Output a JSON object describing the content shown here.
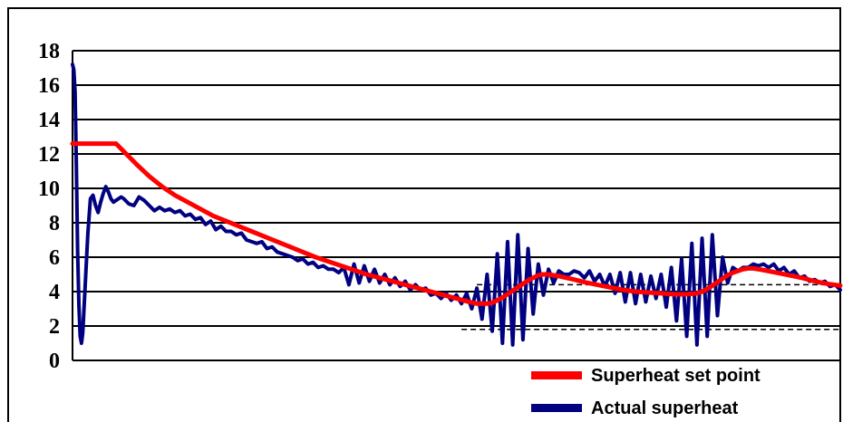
{
  "chart_data": {
    "type": "line",
    "ylim": [
      0,
      18
    ],
    "y_ticks": [
      "0",
      "2",
      "4",
      "6",
      "8",
      "10",
      "12",
      "14",
      "16",
      "18"
    ],
    "grid": "horizontal",
    "legend_position": "bottom-right",
    "x_range": [
      0,
      300
    ],
    "series": [
      {
        "name": "Superheat set point",
        "color": "#ff0000",
        "x": [
          0,
          10,
          12,
          14,
          17,
          21,
          25,
          30,
          35,
          40,
          45,
          50,
          55,
          60,
          65,
          70,
          75,
          80,
          85,
          90,
          95,
          100,
          105,
          110,
          115,
          120,
          125,
          130,
          135,
          140,
          145,
          150,
          155,
          158,
          160,
          162,
          164,
          166,
          168,
          170,
          172,
          174,
          176,
          178,
          180,
          182,
          184,
          186,
          188,
          190,
          193,
          196,
          200,
          205,
          210,
          215,
          220,
          225,
          230,
          235,
          240,
          244,
          246,
          248,
          250,
          252,
          254,
          256,
          258,
          260,
          262,
          264,
          266,
          268,
          270,
          275,
          280,
          285,
          290,
          295,
          300
        ],
        "y": [
          12.6,
          12.6,
          12.6,
          12.6,
          12.6,
          12.0,
          11.4,
          10.7,
          10.1,
          9.6,
          9.2,
          8.8,
          8.4,
          8.1,
          7.8,
          7.5,
          7.2,
          6.9,
          6.6,
          6.3,
          6.0,
          5.75,
          5.5,
          5.25,
          5.0,
          4.8,
          4.6,
          4.4,
          4.2,
          4.0,
          3.8,
          3.6,
          3.4,
          3.3,
          3.3,
          3.3,
          3.35,
          3.5,
          3.65,
          3.85,
          4.05,
          4.25,
          4.45,
          4.65,
          4.8,
          4.95,
          5.0,
          5.0,
          4.95,
          4.9,
          4.8,
          4.7,
          4.55,
          4.4,
          4.25,
          4.1,
          4.0,
          3.95,
          3.9,
          3.85,
          3.85,
          3.9,
          4.0,
          4.15,
          4.35,
          4.55,
          4.75,
          4.95,
          5.1,
          5.2,
          5.3,
          5.35,
          5.35,
          5.3,
          5.25,
          5.1,
          4.95,
          4.8,
          4.6,
          4.45,
          4.35
        ]
      },
      {
        "name": "Actual superheat",
        "color": "#000080",
        "x": [
          0,
          0.5,
          1,
          1.5,
          2,
          2.5,
          3,
          3.5,
          4,
          5,
          6,
          7,
          8,
          9,
          10,
          11,
          12,
          13,
          14,
          15,
          16,
          17,
          18,
          19,
          20,
          22,
          24,
          26,
          28,
          30,
          32,
          34,
          36,
          38,
          40,
          42,
          44,
          46,
          48,
          50,
          52,
          54,
          56,
          58,
          60,
          62,
          64,
          66,
          68,
          70,
          72,
          74,
          76,
          78,
          80,
          82,
          84,
          86,
          88,
          90,
          92,
          94,
          96,
          98,
          100,
          102,
          104,
          106,
          108,
          110,
          112,
          114,
          116,
          118,
          120,
          122,
          124,
          126,
          128,
          130,
          132,
          134,
          136,
          138,
          140,
          142,
          144,
          146,
          148,
          150,
          152,
          154,
          156,
          158,
          160,
          162,
          164,
          166,
          168,
          170,
          172,
          174,
          176,
          178,
          180,
          182,
          184,
          186,
          188,
          190,
          192,
          194,
          196,
          198,
          200,
          202,
          204,
          206,
          208,
          210,
          212,
          214,
          216,
          218,
          220,
          222,
          224,
          226,
          228,
          230,
          232,
          234,
          236,
          238,
          240,
          242,
          244,
          246,
          248,
          250,
          252,
          254,
          256,
          258,
          260,
          262,
          264,
          266,
          268,
          270,
          272,
          274,
          276,
          278,
          280,
          282,
          284,
          286,
          288,
          290,
          292,
          294,
          296,
          298,
          300
        ],
        "y": [
          17.2,
          16.9,
          15.6,
          11.4,
          6.3,
          3.2,
          1.4,
          1.0,
          1.6,
          4.5,
          7.4,
          9.4,
          9.6,
          9.0,
          8.6,
          9.2,
          9.7,
          10.1,
          9.8,
          9.4,
          9.2,
          9.3,
          9.4,
          9.5,
          9.4,
          9.1,
          9.0,
          9.5,
          9.3,
          9.0,
          8.7,
          8.9,
          8.7,
          8.8,
          8.6,
          8.7,
          8.4,
          8.5,
          8.2,
          8.3,
          7.9,
          8.1,
          7.6,
          7.8,
          7.5,
          7.5,
          7.3,
          7.4,
          7.0,
          6.9,
          6.8,
          6.9,
          6.5,
          6.6,
          6.3,
          6.2,
          6.1,
          6.0,
          5.8,
          5.9,
          5.6,
          5.7,
          5.4,
          5.5,
          5.3,
          5.3,
          5.1,
          5.4,
          4.4,
          5.6,
          4.5,
          5.5,
          4.6,
          5.3,
          4.5,
          5.0,
          4.4,
          4.8,
          4.3,
          4.6,
          4.1,
          4.4,
          4.1,
          4.2,
          3.8,
          3.9,
          3.6,
          3.9,
          3.5,
          3.8,
          3.3,
          3.9,
          3.0,
          4.2,
          2.4,
          5.0,
          1.7,
          6.2,
          1.0,
          6.9,
          0.9,
          7.3,
          1.2,
          6.5,
          2.7,
          5.6,
          3.8,
          5.3,
          4.5,
          5.2,
          5.0,
          5.0,
          5.2,
          5.1,
          4.8,
          5.2,
          4.6,
          5.0,
          4.3,
          5.0,
          3.9,
          5.1,
          3.4,
          5.1,
          3.3,
          5.0,
          3.4,
          4.9,
          3.6,
          5.0,
          3.1,
          5.4,
          2.3,
          5.9,
          1.4,
          6.8,
          0.9,
          7.1,
          1.4,
          7.3,
          2.6,
          6.0,
          4.5,
          5.4,
          5.2,
          5.4,
          5.4,
          5.6,
          5.5,
          5.6,
          5.4,
          5.6,
          5.2,
          5.4,
          5.0,
          5.2,
          4.8,
          4.9,
          4.6,
          4.7,
          4.5,
          4.6,
          4.3,
          4.4,
          4.1
        ]
      }
    ],
    "reference_lines": [
      {
        "y": 4.4,
        "x_from": 158,
        "x_to": 300,
        "style": "dashed"
      },
      {
        "y": 1.8,
        "x_from": 152,
        "x_to": 300,
        "style": "dashed"
      }
    ]
  }
}
